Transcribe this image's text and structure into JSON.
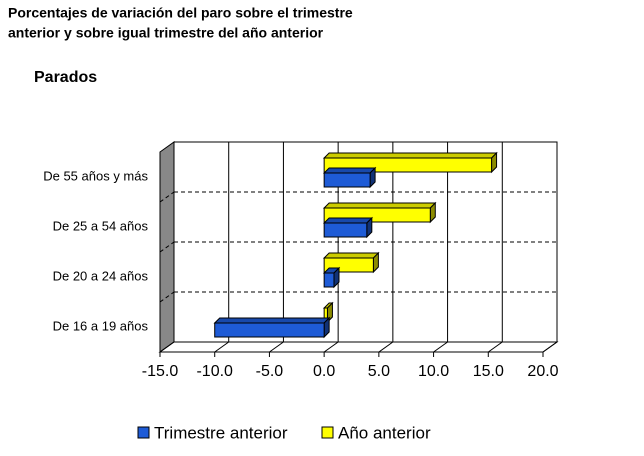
{
  "chart_data": {
    "type": "hbar",
    "title": [
      "Porcentajes de variación del paro sobre el trimestre",
      "anterior y sobre igual trimestre del año anterior"
    ],
    "subtitle": "Parados",
    "categories": [
      "De 55 años y más",
      "De 25 a 54 años",
      "De 20 a 24 años",
      "De 16 a 19 años"
    ],
    "series": [
      {
        "name": "Trimestre anterior",
        "color": "#1e5bd6",
        "values": [
          4.2,
          3.9,
          0.9,
          -10.0
        ]
      },
      {
        "name": "Año anterior",
        "color": "#ffff00",
        "values": [
          15.3,
          9.7,
          4.5,
          0.3
        ]
      }
    ],
    "xlim": [
      -15,
      20
    ],
    "xticks": [
      {
        "value": -15,
        "label": "-15.0"
      },
      {
        "value": -10,
        "label": "-10.0"
      },
      {
        "value": -5,
        "label": "-5.0"
      },
      {
        "value": 0,
        "label": "0.0"
      },
      {
        "value": 5,
        "label": "5.0"
      },
      {
        "value": 10,
        "label": "10.0"
      },
      {
        "value": 15,
        "label": "15.0"
      },
      {
        "value": 20,
        "label": "20.0"
      }
    ],
    "grid": true,
    "legend": "bottom"
  }
}
